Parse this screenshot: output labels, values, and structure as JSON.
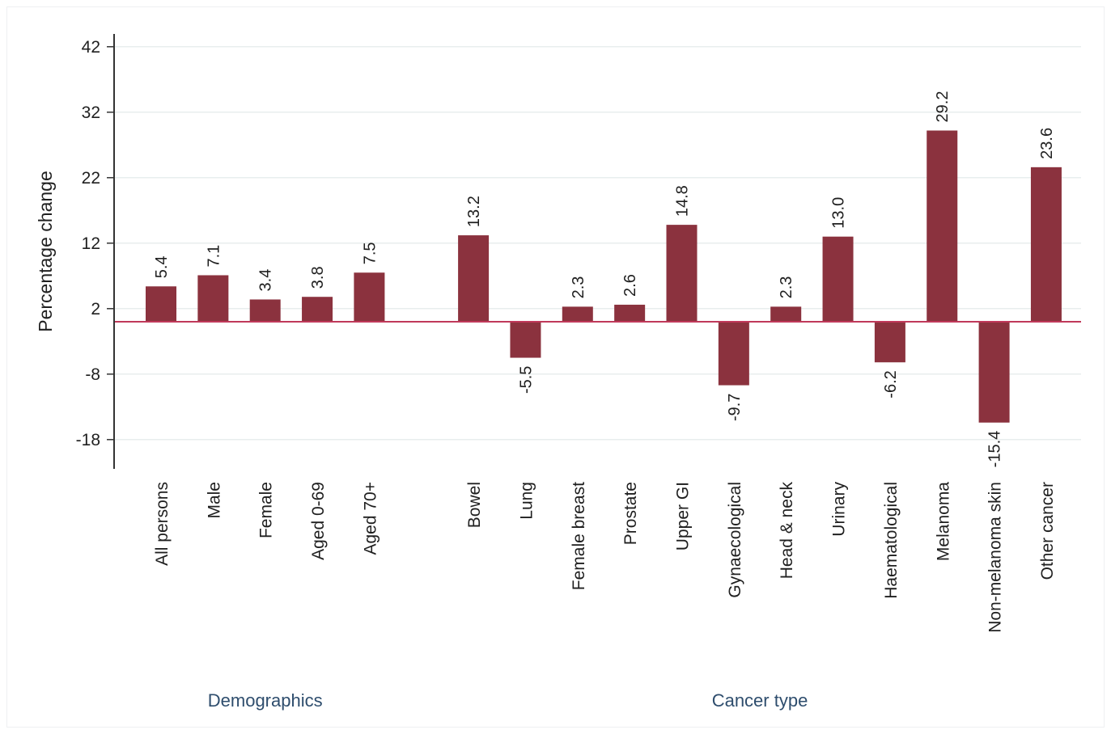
{
  "chart_data": {
    "type": "bar",
    "ylabel": "Percentage change",
    "yticks": [
      42,
      32,
      22,
      12,
      2,
      -8,
      -18
    ],
    "ylim": [
      -22,
      44
    ],
    "baseline": 0,
    "grid": true,
    "groups": [
      {
        "name": "Demographics",
        "categories": [
          "All persons",
          "Male",
          "Female",
          "Aged 0-69",
          "Aged 70+"
        ],
        "values": [
          5.4,
          7.1,
          3.4,
          3.8,
          7.5
        ]
      },
      {
        "name": "Cancer type",
        "categories": [
          "Bowel",
          "Lung",
          "Female breast",
          "Prostate",
          "Upper GI",
          "Gynaecological",
          "Head & neck",
          "Urinary",
          "Haematological",
          "Melanoma",
          "Non-melanoma skin",
          "Other cancer"
        ],
        "values": [
          13.2,
          -5.5,
          2.3,
          2.6,
          14.8,
          -9.7,
          2.3,
          13.0,
          -6.2,
          29.2,
          -15.4,
          23.6
        ]
      }
    ],
    "colors": {
      "bar": "#8b323e",
      "baseline": "#c0395a",
      "grid": "#e8eeee",
      "axis": "#333333",
      "group_label": "#2e4d6d"
    }
  }
}
